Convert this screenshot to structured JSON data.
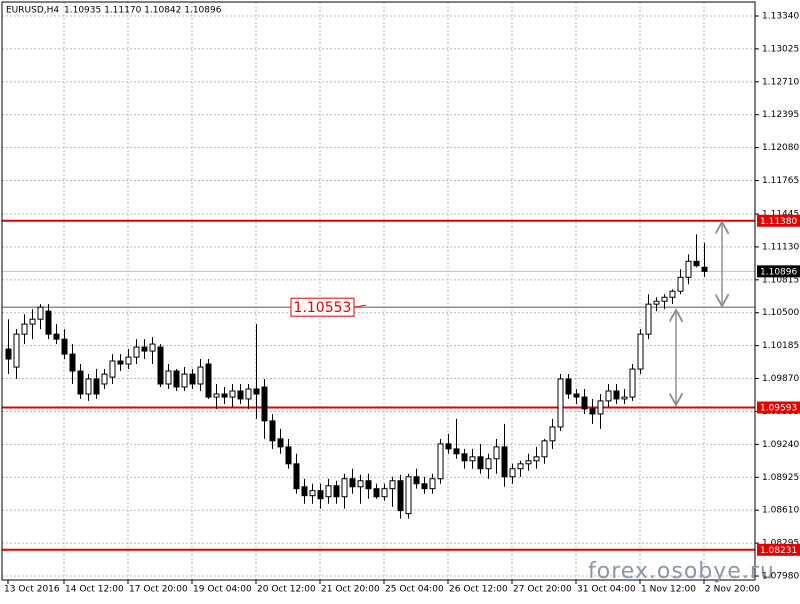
{
  "chart_data": {
    "type": "candlestick",
    "title": "EURUSD,H4",
    "subtitle": "1.10935 1.11170 1.10842 1.10896",
    "watermark": "forex.osobye.ru",
    "categories": [
      "13 Oct 2016",
      null,
      null,
      null,
      null,
      null,
      null,
      "14 Oct 12:00",
      null,
      null,
      null,
      null,
      null,
      null,
      null,
      "17 Oct 20:00",
      null,
      null,
      null,
      null,
      null,
      null,
      null,
      "19 Oct 04:00",
      null,
      null,
      null,
      null,
      null,
      null,
      null,
      "20 Oct 12:00",
      null,
      null,
      null,
      null,
      null,
      null,
      null,
      "21 Oct 20:00",
      null,
      null,
      null,
      null,
      null,
      null,
      null,
      "25 Oct 04:00",
      null,
      null,
      null,
      null,
      null,
      null,
      null,
      "26 Oct 12:00",
      null,
      null,
      null,
      null,
      null,
      null,
      null,
      "27 Oct 20:00",
      null,
      null,
      null,
      null,
      null,
      null,
      null,
      "31 Oct 04:00",
      null,
      null,
      null,
      null,
      null,
      null,
      null,
      "1 Nov 12:00",
      null,
      null,
      null,
      null,
      null,
      null,
      null,
      "2 Nov 20:00"
    ],
    "open": [
      1.10152,
      1.0998,
      1.10295,
      1.10391,
      1.10438,
      1.10515,
      1.10295,
      1.10247,
      1.10104,
      1.09942,
      1.09722,
      1.09866,
      1.09818,
      1.09884,
      1.10038,
      1.10009,
      1.10075,
      1.10171,
      1.10133,
      1.10171,
      1.09818,
      1.09942,
      1.09789,
      1.09913,
      1.09818,
      1.10009,
      1.09693,
      1.09722,
      1.09693,
      1.09751,
      1.09675,
      1.0977,
      1.09789,
      1.09465,
      1.09293,
      1.09216,
      1.09054,
      1.08834,
      1.08749,
      1.08797,
      1.08739,
      1.08844,
      1.08739,
      1.08911,
      1.08834,
      1.08892,
      1.08816,
      1.08739,
      1.08816,
      1.08892,
      1.08577,
      1.0893,
      1.08863,
      1.08816,
      1.08911,
      1.09245,
      1.09197,
      1.0915,
      1.09083,
      1.09121,
      1.09007,
      1.09102,
      1.09216,
      1.0893,
      1.09007,
      1.09054,
      1.09083,
      1.09121,
      1.09274,
      1.09407,
      1.09866,
      1.09722,
      1.09693,
      1.09579,
      1.09531,
      1.09656,
      1.09751,
      1.09675,
      1.09693,
      1.09961,
      1.10295,
      1.10582,
      1.1061,
      1.10648,
      1.10706,
      1.10839,
      1.10992,
      1.10935
    ],
    "high": [
      1.10438,
      1.10343,
      1.10486,
      1.10534,
      1.10582,
      1.10582,
      1.10391,
      1.10343,
      1.102,
      1.10009,
      1.09913,
      1.09961,
      1.09961,
      1.10104,
      1.10104,
      1.10152,
      1.10247,
      1.10247,
      1.10266,
      1.102,
      1.10009,
      1.09961,
      1.0998,
      1.09961,
      1.10057,
      1.10057,
      1.09818,
      1.09789,
      1.09818,
      1.09818,
      1.09818,
      1.10391,
      1.09866,
      1.09531,
      1.09388,
      1.09293,
      1.0915,
      1.08911,
      1.08863,
      1.08863,
      1.08911,
      1.08892,
      1.08959,
      1.09007,
      1.08949,
      1.08959,
      1.08863,
      1.08863,
      1.0893,
      1.08949,
      1.08959,
      1.09007,
      1.0893,
      1.08959,
      1.09293,
      1.09341,
      1.09484,
      1.09197,
      1.09197,
      1.09245,
      1.0915,
      1.09293,
      1.09436,
      1.09054,
      1.09083,
      1.0915,
      1.09216,
      1.09293,
      1.09484,
      1.09913,
      1.09913,
      1.0977,
      1.0977,
      1.09675,
      1.09722,
      1.09818,
      1.09818,
      1.0977,
      1.10009,
      1.10343,
      1.10677,
      1.10648,
      1.10677,
      1.10725,
      1.10916,
      1.11059,
      1.1125,
      1.1117
    ],
    "low": [
      1.09913,
      1.09866,
      1.102,
      1.10247,
      1.10343,
      1.10247,
      1.102,
      1.10057,
      1.09818,
      1.09675,
      1.09656,
      1.09675,
      1.0977,
      1.09818,
      1.09942,
      1.09961,
      1.10009,
      1.10057,
      1.10009,
      1.09789,
      1.0977,
      1.09751,
      1.09751,
      1.0977,
      1.09751,
      1.09675,
      1.09579,
      1.09627,
      1.09598,
      1.09627,
      1.09579,
      1.09484,
      1.09293,
      1.09197,
      1.0915,
      1.09007,
      1.08768,
      1.08672,
      1.08672,
      1.08625,
      1.08672,
      1.08672,
      1.08625,
      1.08768,
      1.08672,
      1.0872,
      1.0872,
      1.08701,
      1.08643,
      1.08529,
      1.08529,
      1.08816,
      1.08768,
      1.08768,
      1.08863,
      1.0915,
      1.09102,
      1.09007,
      1.09007,
      1.08959,
      1.08911,
      1.08959,
      1.08834,
      1.08863,
      1.0893,
      1.08988,
      1.09007,
      1.09054,
      1.09197,
      1.09369,
      1.09675,
      1.09627,
      1.09531,
      1.09436,
      1.09388,
      1.09598,
      1.09627,
      1.09627,
      1.09656,
      1.09913,
      1.10247,
      1.10515,
      1.10534,
      1.10582,
      1.10677,
      1.10772,
      1.10934,
      1.10842
    ],
    "close": [
      1.10057,
      1.10295,
      1.10391,
      1.10438,
      1.10553,
      1.10295,
      1.10247,
      1.10104,
      1.09942,
      1.09722,
      1.09866,
      1.09722,
      1.09913,
      1.10038,
      1.10009,
      1.10075,
      1.10171,
      1.10133,
      1.102,
      1.09818,
      1.09942,
      1.09789,
      1.09913,
      1.09818,
      1.0998,
      1.09693,
      1.09722,
      1.09693,
      1.09751,
      1.09675,
      1.0977,
      1.09722,
      1.09465,
      1.09274,
      1.09216,
      1.09054,
      1.08816,
      1.08749,
      1.08797,
      1.0872,
      1.08844,
      1.08739,
      1.08911,
      1.08834,
      1.08892,
      1.08816,
      1.08739,
      1.08816,
      1.08892,
      1.08606,
      1.0893,
      1.08863,
      1.08816,
      1.08911,
      1.09245,
      1.09197,
      1.0915,
      1.09083,
      1.09121,
      1.09007,
      1.09102,
      1.09216,
      1.0893,
      1.09007,
      1.09054,
      1.09083,
      1.09121,
      1.09274,
      1.09407,
      1.09866,
      1.09722,
      1.09693,
      1.09579,
      1.09531,
      1.09656,
      1.09751,
      1.09675,
      1.09693,
      1.09961,
      1.10295,
      1.10582,
      1.1061,
      1.10648,
      1.10706,
      1.10839,
      1.10992,
      1.1095,
      1.10896
    ],
    "ylim": [
      1.07942,
      1.13493
    ],
    "yticks": [
      {
        "value": 1.1334,
        "label": "1.13340"
      },
      1.13025,
      {
        "value": 1.1271,
        "label": "1.12710"
      },
      1.12395,
      {
        "value": 1.1208,
        "label": "1.12080"
      },
      1.11765,
      1.11445,
      {
        "value": 1.1113,
        "label": "1.11130"
      },
      1.10815,
      {
        "value": 1.105,
        "label": "1.10500"
      },
      1.10185,
      {
        "value": 1.0987,
        "label": "1.09870"
      },
      1.09555,
      {
        "value": 1.0924,
        "label": "1.09240"
      },
      1.08925,
      {
        "value": 1.0861,
        "label": "1.08610"
      },
      1.08295,
      {
        "value": 1.0798,
        "label": "1.07980"
      }
    ],
    "grid": true,
    "levels": [
      {
        "value": 1.1138,
        "label": "1.11380"
      },
      {
        "value": 1.09593,
        "label": "1.09593"
      },
      {
        "value": 1.08231,
        "label": "1.08231"
      }
    ],
    "level_color": "#e00000",
    "annotation": {
      "value": 1.10553,
      "label": "1.10553"
    },
    "annotation_color": "#909090",
    "bull_color": "#ffffff",
    "bear_color": "#000000"
  }
}
